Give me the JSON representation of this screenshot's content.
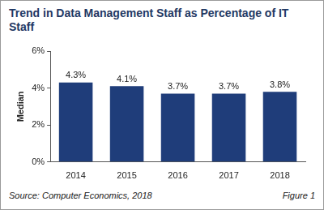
{
  "chart_data": {
    "type": "bar",
    "title": "Trend in Data Management Staff as Percentage of IT Staff",
    "y_label": "Median",
    "categories": [
      "2014",
      "2015",
      "2016",
      "2017",
      "2018"
    ],
    "values": [
      4.3,
      4.1,
      3.7,
      3.7,
      3.8
    ],
    "value_labels": [
      "4.3%",
      "4.1%",
      "3.7%",
      "3.7%",
      "3.8%"
    ],
    "data_labels": true,
    "color": "#1f3d7a",
    "ylim": [
      0,
      6
    ],
    "yticks": [
      {
        "value": 0,
        "label": "0%"
      },
      {
        "value": 2,
        "label": "2%"
      },
      {
        "value": 4,
        "label": "4%"
      },
      {
        "value": 6,
        "label": "6%"
      }
    ],
    "grid": false,
    "annotations": [
      "Source: Computer Economics, 2018",
      "Figure 1"
    ]
  }
}
